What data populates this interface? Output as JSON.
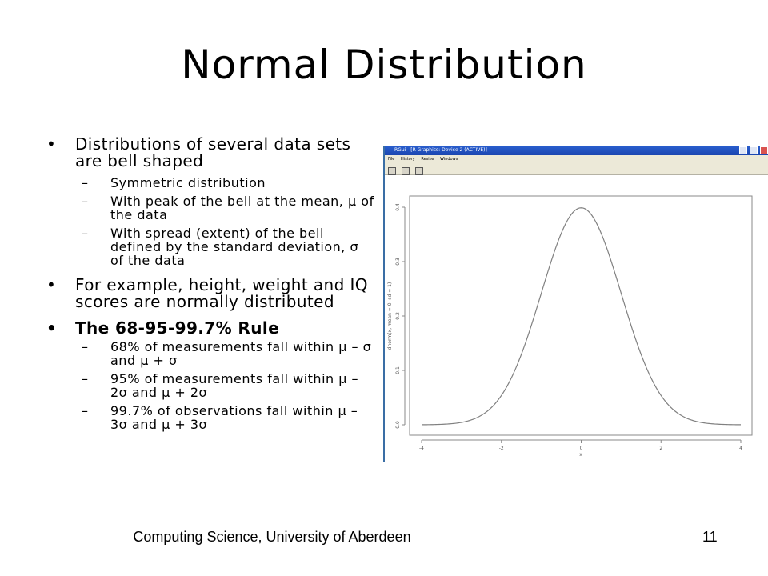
{
  "slide": {
    "title": "Normal Distribution",
    "bullets": [
      {
        "text": "Distributions of several data sets are bell shaped",
        "sub": [
          "Symmetric distribution",
          "With peak of the bell at the mean, μ of the data",
          "With spread (extent) of the bell defined by the standard deviation, σ of the data"
        ]
      },
      {
        "text": "For example, height, weight and IQ scores are normally distributed",
        "sub": []
      },
      {
        "text": "The 68-95-99.7% Rule",
        "sub": [
          "68% of measurements fall within μ – σ and μ + σ",
          "95% of measurements fall within μ – 2σ  and μ + 2σ",
          "99.7% of observations fall within μ – 3σ and μ + 3σ"
        ]
      }
    ],
    "footer": "Computing Science, University of Aberdeen",
    "page_number": "11"
  },
  "rgui": {
    "window_title": "RGui - [R Graphics: Device 2 (ACTIVE)]",
    "menu": [
      "File",
      "History",
      "Resize",
      "Windows"
    ]
  },
  "chart_data": {
    "type": "line",
    "function": "dnorm(x, mean = 0, sd = 1)",
    "xlabel": "x",
    "ylabel": "dnorm(x, mean = 0, sd = 1)",
    "xlim": [
      -4,
      4
    ],
    "ylim": [
      0,
      0.4
    ],
    "x_ticks": [
      "-4",
      "-2",
      "0",
      "2",
      "4"
    ],
    "y_ticks": [
      "0.0",
      "0.1",
      "0.2",
      "0.3",
      "0.4"
    ],
    "grid": false,
    "line_color": "#808080",
    "series": [
      {
        "x": [
          -4,
          -3.5,
          -3,
          -2.5,
          -2,
          -1.5,
          -1,
          -0.5,
          0,
          0.5,
          1,
          1.5,
          2,
          2.5,
          3,
          3.5,
          4
        ],
        "y": [
          0.0001,
          0.0009,
          0.0044,
          0.0175,
          0.054,
          0.1295,
          0.242,
          0.3521,
          0.3989,
          0.3521,
          0.242,
          0.1295,
          0.054,
          0.0175,
          0.0044,
          0.0009,
          0.0001
        ]
      }
    ]
  }
}
